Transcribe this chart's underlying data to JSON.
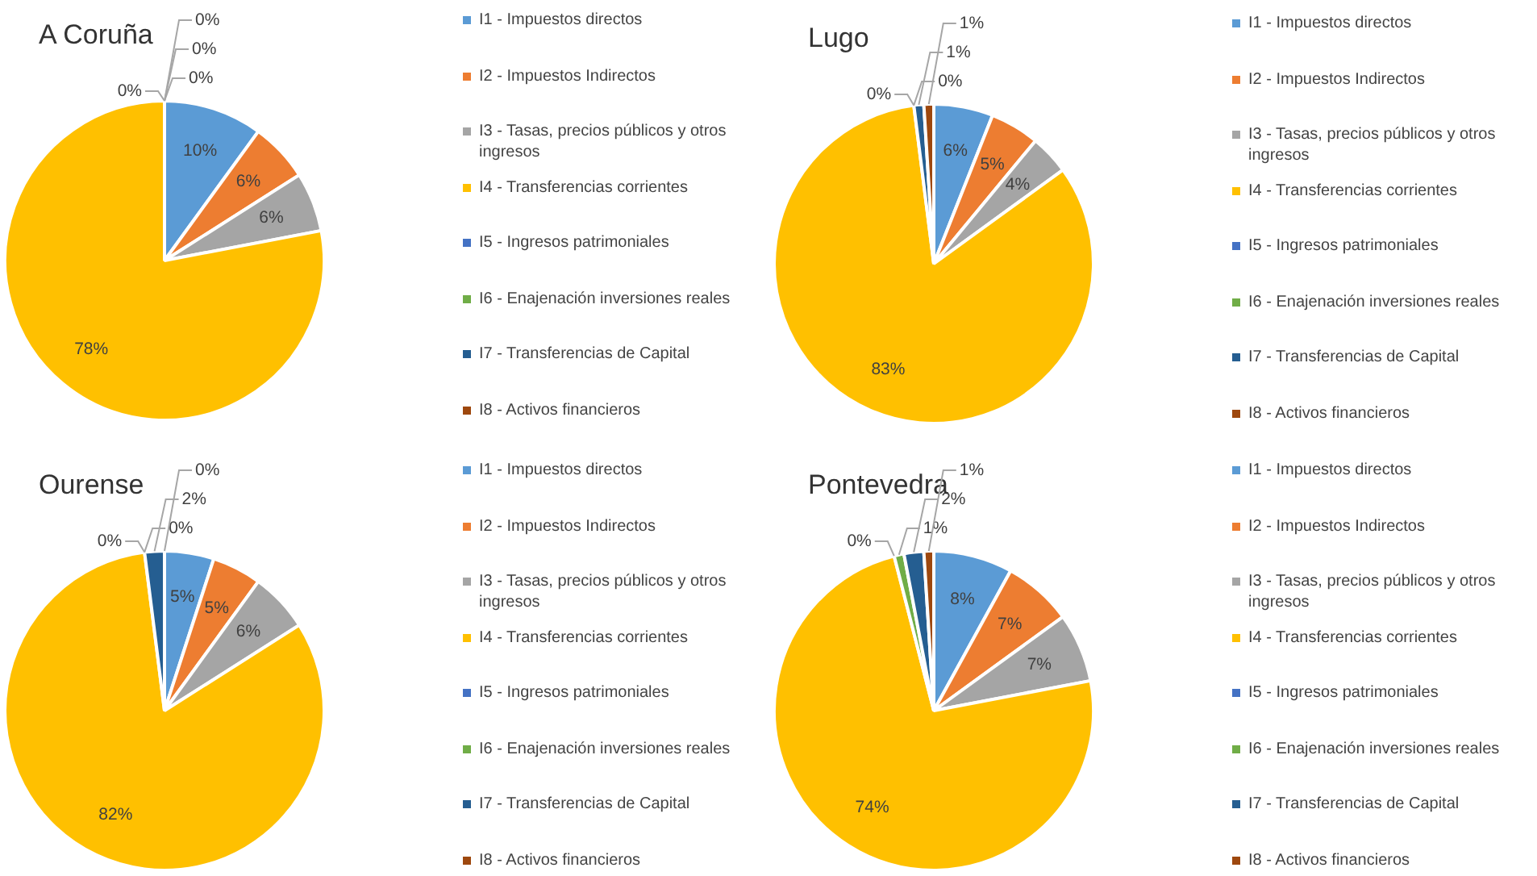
{
  "chart_data": [
    {
      "type": "pie",
      "title": "A Coruña",
      "categories": [
        "I1 - Impuestos directos",
        "I2 - Impuestos Indirectos",
        "I3 - Tasas, precios públicos y otros ingresos",
        "I4 - Transferencias corrientes",
        "I5 - Ingresos patrimoniales",
        "I6 - Enajenación inversiones reales",
        "I7 - Transferencias de Capital",
        "I8 - Activos financieros"
      ],
      "values": [
        10,
        6,
        6,
        78,
        0,
        0,
        0,
        0
      ],
      "value_labels": [
        "10%",
        "6%",
        "6%",
        "78%",
        "0%",
        "0%",
        "0%",
        "0%"
      ],
      "colors": [
        "#5b9bd5",
        "#ed7d31",
        "#a5a5a5",
        "#ffc000",
        "#4472c4",
        "#70ad47",
        "#255e91",
        "#9e480e"
      ],
      "legend": "right"
    },
    {
      "type": "pie",
      "title": "Lugo",
      "categories": [
        "I1 - Impuestos directos",
        "I2 - Impuestos Indirectos",
        "I3 - Tasas, precios públicos y otros ingresos",
        "I4 - Transferencias corrientes",
        "I5 - Ingresos patrimoniales",
        "I6 - Enajenación inversiones reales",
        "I7 - Transferencias de Capital",
        "I8 - Activos financieros"
      ],
      "values": [
        6,
        5,
        4,
        83,
        0,
        0,
        1,
        1
      ],
      "value_labels": [
        "6%",
        "5%",
        "4%",
        "83%",
        "0%",
        "0%",
        "1%",
        "1%"
      ],
      "colors": [
        "#5b9bd5",
        "#ed7d31",
        "#a5a5a5",
        "#ffc000",
        "#4472c4",
        "#70ad47",
        "#255e91",
        "#9e480e"
      ],
      "legend": "right"
    },
    {
      "type": "pie",
      "title": "Ourense",
      "categories": [
        "I1 - Impuestos directos",
        "I2 - Impuestos Indirectos",
        "I3 - Tasas, precios públicos y otros ingresos",
        "I4 - Transferencias corrientes",
        "I5 - Ingresos patrimoniales",
        "I6 - Enajenación inversiones reales",
        "I7 - Transferencias de Capital",
        "I8 - Activos financieros"
      ],
      "values": [
        5,
        5,
        6,
        82,
        0,
        0,
        2,
        0
      ],
      "value_labels": [
        "5%",
        "5%",
        "6%",
        "82%",
        "0%",
        "0%",
        "2%",
        "0%"
      ],
      "colors": [
        "#5b9bd5",
        "#ed7d31",
        "#a5a5a5",
        "#ffc000",
        "#4472c4",
        "#70ad47",
        "#255e91",
        "#9e480e"
      ],
      "legend": "right"
    },
    {
      "type": "pie",
      "title": "Pontevedra",
      "categories": [
        "I1 - Impuestos directos",
        "I2 - Impuestos Indirectos",
        "I3 - Tasas, precios públicos y otros ingresos",
        "I4 - Transferencias corrientes",
        "I5 - Ingresos patrimoniales",
        "I6 - Enajenación inversiones reales",
        "I7 - Transferencias de Capital",
        "I8 - Activos financieros"
      ],
      "values": [
        8,
        7,
        7,
        74,
        0,
        1,
        2,
        1
      ],
      "value_labels": [
        "8%",
        "7%",
        "7%",
        "74%",
        "0%",
        "1%",
        "2%",
        "1%"
      ],
      "colors": [
        "#5b9bd5",
        "#ed7d31",
        "#a5a5a5",
        "#ffc000",
        "#4472c4",
        "#70ad47",
        "#255e91",
        "#9e480e"
      ],
      "legend": "right"
    }
  ]
}
